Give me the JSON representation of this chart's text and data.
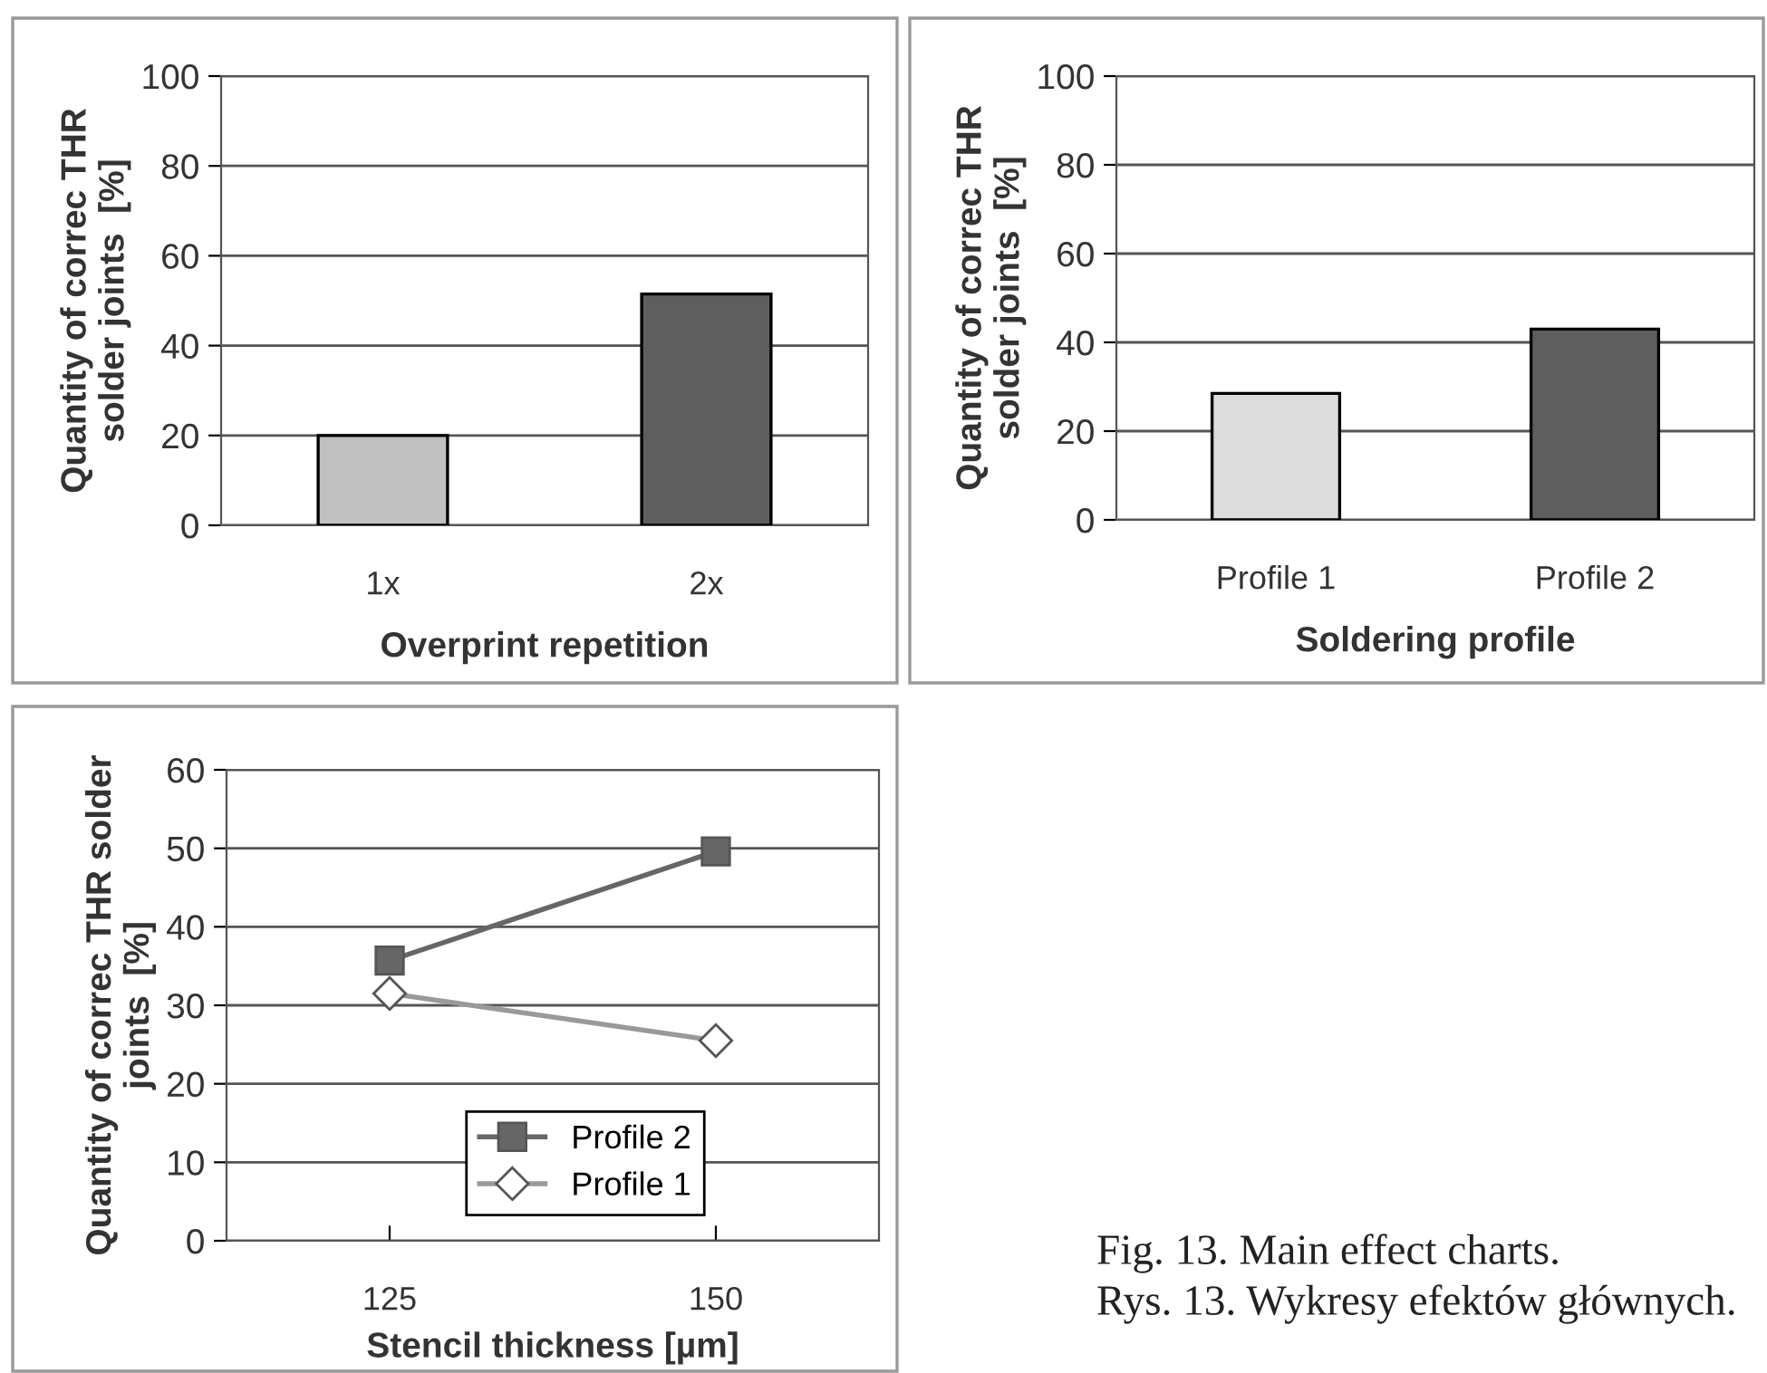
{
  "chart_data": [
    {
      "type": "bar",
      "categories": [
        "1x",
        "2x"
      ],
      "values": [
        20,
        51.5
      ],
      "colors": [
        "#c0c0c0",
        "#5e5e5e"
      ],
      "xlabel": "Overprint repetition",
      "ylabel": "Quantity of correc THR\nsolder joints  [%]",
      "ylim": [
        0,
        100
      ],
      "yticks": [
        0,
        20,
        40,
        60,
        80,
        100
      ],
      "grid": "y",
      "legend": false
    },
    {
      "type": "bar",
      "categories": [
        "Profile 1",
        "Profile 2"
      ],
      "values": [
        28.5,
        43
      ],
      "colors": [
        "#dcdcdc",
        "#5e5e5e"
      ],
      "xlabel": "Soldering profile",
      "ylabel": "Quantity of correc THR\nsolder joints  [%]",
      "ylim": [
        0,
        100
      ],
      "yticks": [
        0,
        20,
        40,
        60,
        80,
        100
      ],
      "grid": "y",
      "legend": false
    },
    {
      "type": "line",
      "x": [
        125,
        150
      ],
      "xlim": [
        112.5,
        162.5
      ],
      "xticks": [
        125,
        150
      ],
      "series": [
        {
          "name": "Profile 2",
          "color": "#666666",
          "values": [
            35.7,
            49.6
          ],
          "marker": "square"
        },
        {
          "name": "Profile 1",
          "color": "#999999",
          "values": [
            31.5,
            25.5
          ],
          "marker": "diamond"
        }
      ],
      "xlabel": "Stencil thickness [µm]",
      "ylabel": "Quantity of correc THR solder\njoints  [%]",
      "ylim": [
        0,
        60
      ],
      "yticks": [
        0,
        10,
        20,
        30,
        40,
        50,
        60
      ],
      "grid": "y",
      "legend": "bottom",
      "annotations": [
        "Fig. 13. Main effect charts.",
        "Rys. 13. Wykresy efektów głównych."
      ]
    }
  ]
}
